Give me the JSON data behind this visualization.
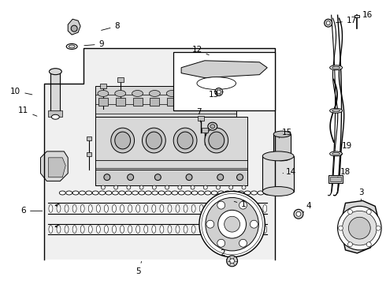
{
  "background_color": "#ffffff",
  "line_color": "#000000",
  "gray_fill": "#c8c8c8",
  "light_gray": "#e8e8e8",
  "figsize": [
    4.9,
    3.6
  ],
  "dpi": 100,
  "labels": {
    "1": [
      310,
      278,
      295,
      270
    ],
    "2": [
      295,
      315,
      295,
      308
    ],
    "3": [
      455,
      278,
      445,
      270
    ],
    "4": [
      380,
      278,
      372,
      272
    ],
    "5": [
      175,
      335,
      175,
      328
    ],
    "6": [
      30,
      248,
      55,
      248
    ],
    "7": [
      248,
      148,
      245,
      158
    ],
    "8": [
      135,
      28,
      115,
      35
    ],
    "9": [
      118,
      52,
      105,
      55
    ],
    "10": [
      18,
      120,
      35,
      120
    ],
    "11": [
      28,
      138,
      42,
      138
    ],
    "12": [
      248,
      72,
      248,
      80
    ],
    "13": [
      265,
      108,
      268,
      108
    ],
    "14": [
      362,
      198,
      355,
      198
    ],
    "15": [
      358,
      175,
      348,
      175
    ],
    "16": [
      462,
      20,
      455,
      20
    ],
    "17": [
      440,
      22,
      428,
      26
    ],
    "18": [
      418,
      218,
      408,
      218
    ],
    "19": [
      430,
      185,
      420,
      195
    ]
  }
}
